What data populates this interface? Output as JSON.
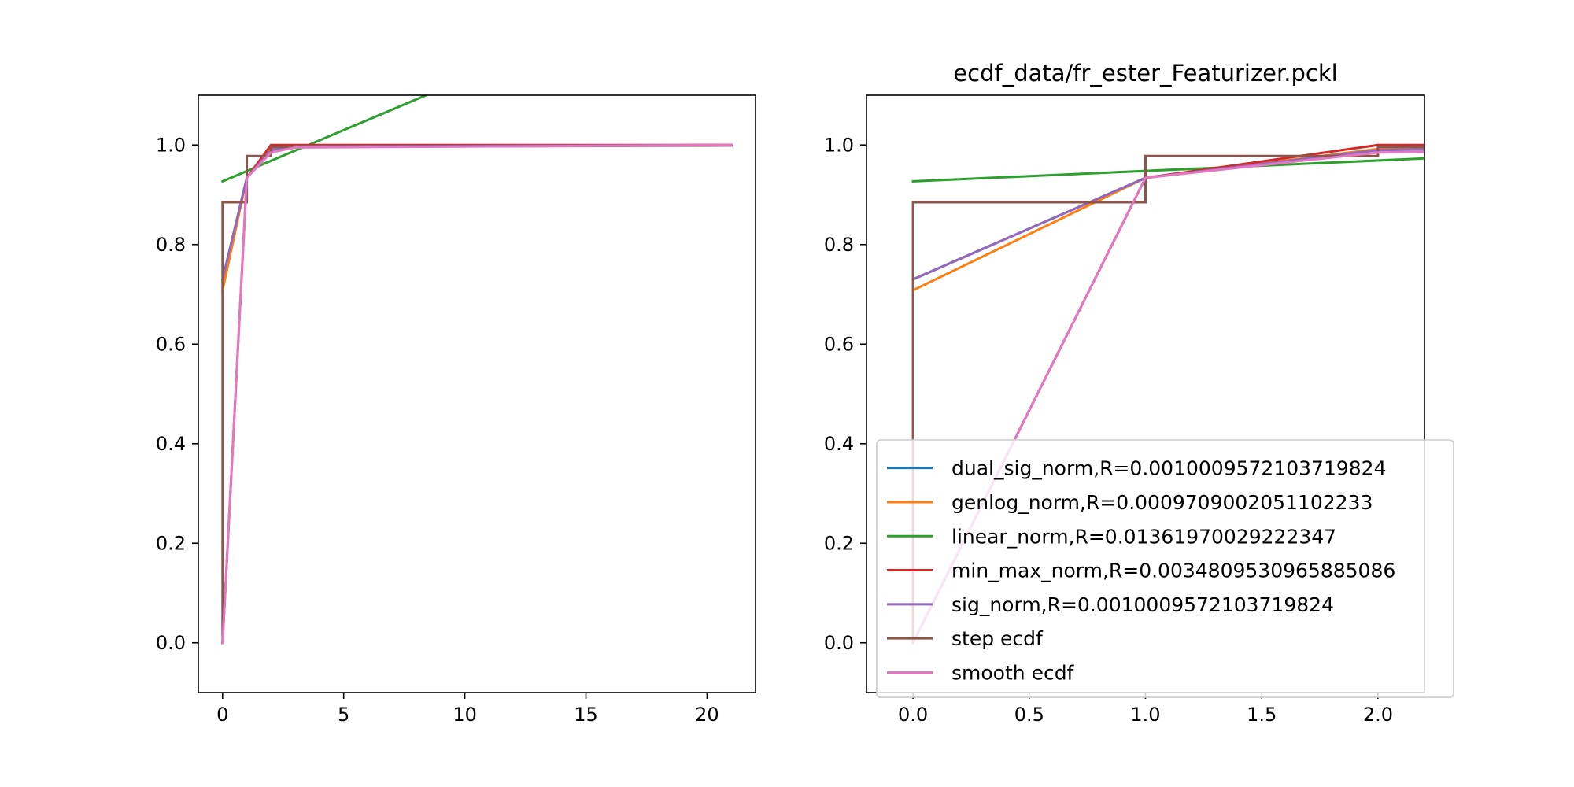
{
  "chart_data": [
    {
      "type": "line",
      "title": "",
      "xlabel": "",
      "ylabel": "",
      "xlim": [
        -1,
        22
      ],
      "ylim": [
        -0.1,
        1.1
      ],
      "xticks": [
        0,
        5,
        10,
        15,
        20
      ],
      "xtick_labels": [
        "0",
        "5",
        "10",
        "15",
        "20"
      ],
      "yticks": [
        0.0,
        0.2,
        0.4,
        0.6,
        0.8,
        1.0
      ],
      "ytick_labels": [
        "0.0",
        "0.2",
        "0.4",
        "0.6",
        "0.8",
        "1.0"
      ],
      "grid": false,
      "series": [
        {
          "name": "dual_sig_norm,R=0.0010009572103719824",
          "color": "#1f77b4",
          "step": false,
          "x": [
            0,
            1,
            2,
            3,
            21
          ],
          "y": [
            0.73,
            0.934,
            0.99,
            0.997,
            1.0
          ]
        },
        {
          "name": "genlog_norm,R=0.0009709002051102233",
          "color": "#ff7f0e",
          "step": false,
          "x": [
            0,
            1,
            2,
            3,
            21
          ],
          "y": [
            0.708,
            0.934,
            0.992,
            0.998,
            1.0
          ]
        },
        {
          "name": "linear_norm,R=0.01361970029222347",
          "color": "#2ca02c",
          "step": false,
          "x": [
            0,
            8.4
          ],
          "y": [
            0.927,
            1.1
          ]
        },
        {
          "name": "min_max_norm,R=0.0034809530965885086",
          "color": "#d62728",
          "step": false,
          "x": [
            0,
            1,
            2,
            21
          ],
          "y": [
            0.0,
            0.934,
            1.0,
            1.0
          ]
        },
        {
          "name": "sig_norm,R=0.0010009572103719824",
          "color": "#9467bd",
          "step": false,
          "x": [
            0,
            1,
            2,
            3,
            21
          ],
          "y": [
            0.73,
            0.934,
            0.99,
            0.997,
            1.0
          ]
        },
        {
          "name": "step ecdf",
          "color": "#8c564b",
          "step": true,
          "x": [
            0,
            0,
            1,
            1,
            2,
            2,
            21
          ],
          "y": [
            0.0,
            0.885,
            0.885,
            0.978,
            0.978,
            0.996,
            0.999
          ]
        },
        {
          "name": "smooth ecdf",
          "color": "#e377c2",
          "step": false,
          "x": [
            0,
            1,
            2,
            3,
            21
          ],
          "y": [
            0.0,
            0.934,
            0.985,
            0.995,
            1.0
          ]
        }
      ]
    },
    {
      "type": "line",
      "title": "ecdf_data/fr_ester_Featurizer.pckl",
      "xlabel": "",
      "ylabel": "",
      "xlim": [
        -0.2,
        2.2
      ],
      "ylim": [
        -0.1,
        1.1
      ],
      "xticks": [
        0.0,
        0.5,
        1.0,
        1.5,
        2.0
      ],
      "xtick_labels": [
        "0.0",
        "0.5",
        "1.0",
        "1.5",
        "2.0"
      ],
      "yticks": [
        0.0,
        0.2,
        0.4,
        0.6,
        0.8,
        1.0
      ],
      "ytick_labels": [
        "0.0",
        "0.2",
        "0.4",
        "0.6",
        "0.8",
        "1.0"
      ],
      "grid": false,
      "legend": "lower-right",
      "series": [
        {
          "name": "dual_sig_norm,R=0.0010009572103719824",
          "color": "#1f77b4",
          "step": false,
          "x": [
            0,
            1,
            2,
            2.2
          ],
          "y": [
            0.73,
            0.934,
            0.99,
            0.991
          ]
        },
        {
          "name": "genlog_norm,R=0.0009709002051102233",
          "color": "#ff7f0e",
          "step": false,
          "x": [
            0,
            1,
            2,
            2.2
          ],
          "y": [
            0.708,
            0.934,
            0.992,
            0.993
          ]
        },
        {
          "name": "linear_norm,R=0.01361970029222347",
          "color": "#2ca02c",
          "step": false,
          "x": [
            0,
            2.2
          ],
          "y": [
            0.927,
            0.973
          ]
        },
        {
          "name": "min_max_norm,R=0.0034809530965885086",
          "color": "#d62728",
          "step": false,
          "x": [
            0,
            1,
            2,
            2.2
          ],
          "y": [
            0.0,
            0.934,
            1.0,
            1.0
          ]
        },
        {
          "name": "sig_norm,R=0.0010009572103719824",
          "color": "#9467bd",
          "step": false,
          "x": [
            0,
            1,
            2,
            2.2
          ],
          "y": [
            0.73,
            0.934,
            0.99,
            0.991
          ]
        },
        {
          "name": "step ecdf",
          "color": "#8c564b",
          "step": true,
          "x": [
            0,
            0,
            1,
            1,
            2,
            2,
            2.2
          ],
          "y": [
            0.0,
            0.885,
            0.885,
            0.978,
            0.978,
            0.996,
            0.996
          ]
        },
        {
          "name": "smooth ecdf",
          "color": "#e377c2",
          "step": false,
          "x": [
            0,
            1,
            2,
            2.2
          ],
          "y": [
            0.0,
            0.934,
            0.985,
            0.986
          ]
        }
      ]
    }
  ]
}
